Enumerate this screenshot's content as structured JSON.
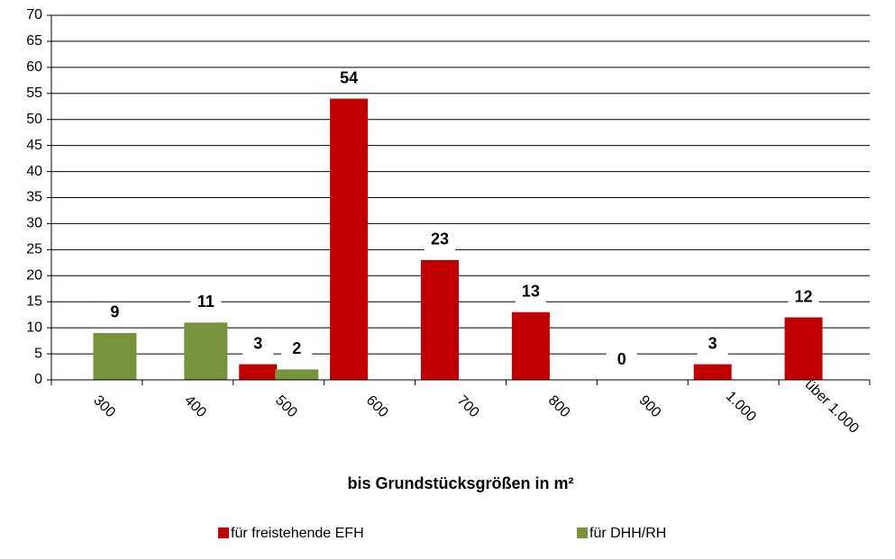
{
  "chart_data": {
    "type": "bar",
    "xlabel": "bis Grundstücksgrößen in m²",
    "categories": [
      "300",
      "400",
      "500",
      "600",
      "700",
      "800",
      "900",
      "1.000",
      "über 1.000"
    ],
    "series": [
      {
        "name": "für freistehende EFH",
        "color": "#c00000",
        "values": [
          null,
          null,
          3,
          54,
          23,
          13,
          0,
          3,
          12
        ]
      },
      {
        "name": "für DHH/RH",
        "color": "#77933c",
        "values": [
          9,
          11,
          2,
          null,
          null,
          null,
          null,
          null,
          null
        ]
      }
    ],
    "ylim": [
      0,
      70
    ],
    "yticks": [
      0,
      5,
      10,
      15,
      20,
      25,
      30,
      35,
      40,
      45,
      50,
      55,
      60,
      65,
      70
    ],
    "grid": true,
    "legend": "bottom"
  }
}
